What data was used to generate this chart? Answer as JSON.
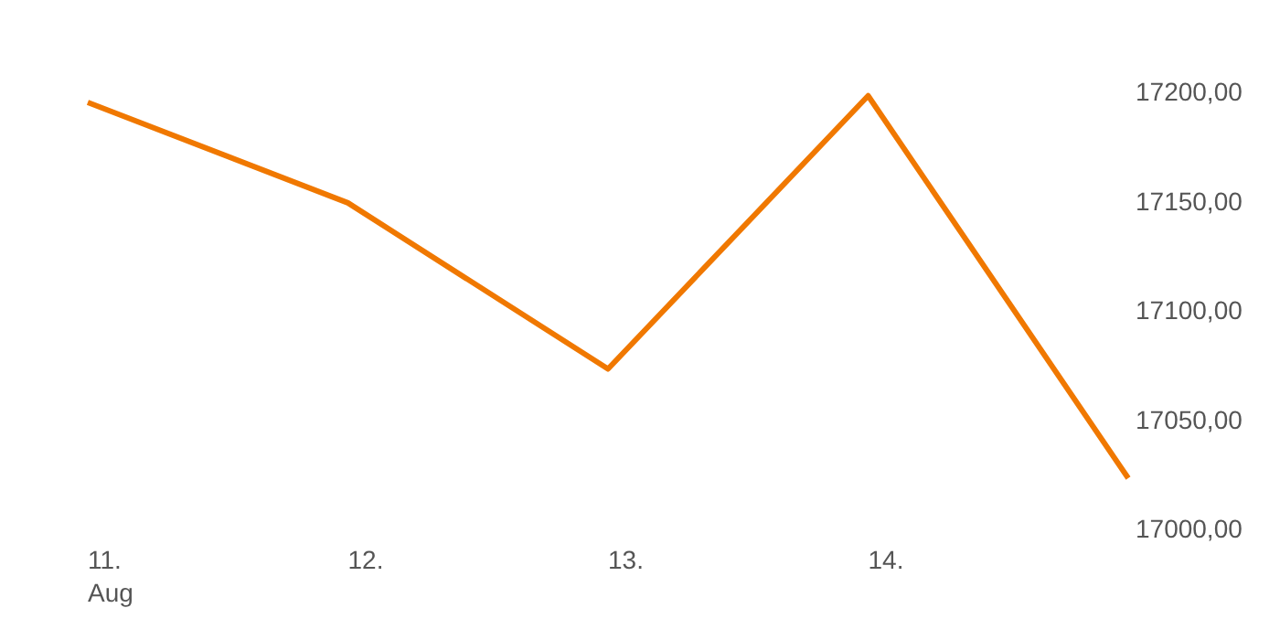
{
  "chart_data": {
    "type": "line",
    "categories": [
      "11.\nAug",
      "12.",
      "13.",
      "14.",
      null
    ],
    "series": [
      {
        "color": "#f07800",
        "values": [
          17195,
          17149,
          17073,
          17198,
          17023
        ]
      }
    ],
    "ylim": [
      17000,
      17200
    ],
    "yticks": [
      {
        "value": 17000,
        "label": "17000,00"
      },
      {
        "value": 17050,
        "label": "17050,00"
      },
      {
        "value": 17100,
        "label": "17100,00"
      },
      {
        "value": 17150,
        "label": "17150,00"
      },
      {
        "value": 17200,
        "label": "17200,00"
      }
    ],
    "grid": false,
    "marker": "none",
    "line_style": "solid"
  }
}
